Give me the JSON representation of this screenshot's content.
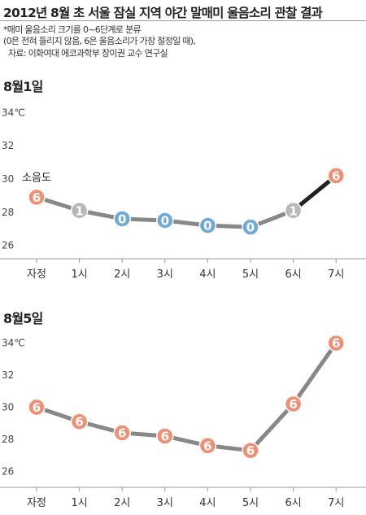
{
  "header": {
    "title": "2012년 8월 초 서울 잠실 지역 야간 말매미 울음소리 관찰 결과",
    "note_line1": "*매미 울음소리 크기를 0~6단계로 분류",
    "note_line2": "(0은 전혀 들리지 않음, 6은 울음소리가 가장 절정일 때),",
    "source": "자료: 이화여대 에코과학부 장이권 교수 연구실"
  },
  "colors": {
    "level_0": "#6fa9d6",
    "level_1": "#b7b7b7",
    "level_6": "#ef8f74",
    "line": "#888888",
    "line_peak": "#222222",
    "label_text": "#ffffff"
  },
  "chart_data": [
    {
      "type": "line",
      "title": "8월1일",
      "ylabel": "34℃",
      "yticks": [
        "34℃",
        "32",
        "30",
        "28",
        "26"
      ],
      "ylim": [
        25,
        35
      ],
      "categories": [
        "자정",
        "1시",
        "2시",
        "3시",
        "4시",
        "5시",
        "6시",
        "7시"
      ],
      "series": [
        {
          "values": [
            28.9,
            28.1,
            27.6,
            27.5,
            27.2,
            27.1,
            28.1,
            30.2
          ],
          "levels": [
            6,
            1,
            0,
            0,
            0,
            0,
            1,
            6
          ]
        }
      ],
      "annotation": "소음도"
    },
    {
      "type": "line",
      "title": "8월5일",
      "ylabel": "34℃",
      "yticks": [
        "34℃",
        "32",
        "30",
        "28",
        "26"
      ],
      "ylim": [
        25,
        35
      ],
      "categories": [
        "자정",
        "1시",
        "2시",
        "3시",
        "4시",
        "5시",
        "6시",
        "7시"
      ],
      "series": [
        {
          "values": [
            30.0,
            29.1,
            28.4,
            28.2,
            27.6,
            27.3,
            30.2,
            34.0
          ],
          "levels": [
            6,
            6,
            6,
            6,
            6,
            6,
            6,
            6
          ]
        }
      ]
    }
  ]
}
